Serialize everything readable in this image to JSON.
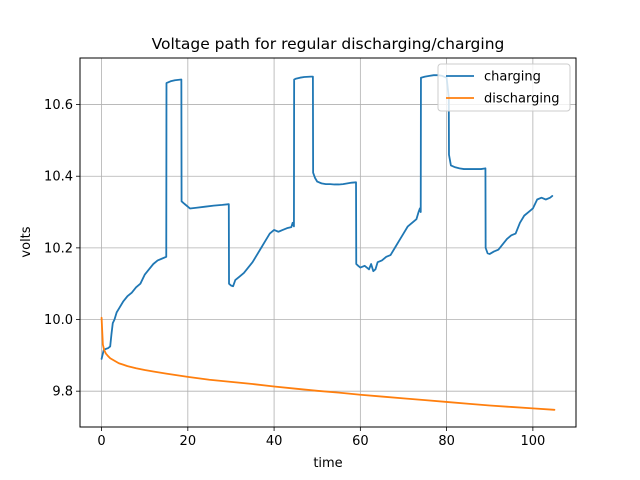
{
  "chart_data": {
    "type": "line",
    "title": "Voltage path for regular discharging/charging",
    "xlabel": "time",
    "ylabel": "volts",
    "xlim": [
      -5,
      110
    ],
    "ylim": [
      9.7,
      10.73
    ],
    "x_ticks": [
      0,
      20,
      40,
      60,
      80,
      100
    ],
    "y_ticks": [
      9.8,
      10.0,
      10.2,
      10.4,
      10.6
    ],
    "y_tick_labels": [
      "9.8",
      "10.0",
      "10.2",
      "10.4",
      "10.6"
    ],
    "grid": true,
    "legend_position": "upper right",
    "series": [
      {
        "name": "charging",
        "color": "#1f77b4",
        "x": [
          0.0,
          0.5,
          1.0,
          1.5,
          2.0,
          2.3,
          2.6,
          3.0,
          3.5,
          4.0,
          5.0,
          6.0,
          7.0,
          8.0,
          9.0,
          10.0,
          11.0,
          12.0,
          13.0,
          14.0,
          15.0,
          15.05,
          16.0,
          17.0,
          18.5,
          18.55,
          19.0,
          19.5,
          20.0,
          20.5,
          22.0,
          24.0,
          26.0,
          28.0,
          29.5,
          29.55,
          30.0,
          30.5,
          31.0,
          32.0,
          33.0,
          34.0,
          35.0,
          36.0,
          37.0,
          38.0,
          39.0,
          40.0,
          41.0,
          42.0,
          43.0,
          44.0,
          44.3,
          44.6,
          44.65,
          45.0,
          46.0,
          47.0,
          48.5,
          49.0,
          49.05,
          49.5,
          50.0,
          51.0,
          52.0,
          53.0,
          54.0,
          55.0,
          56.0,
          57.0,
          58.0,
          59.0,
          59.05,
          59.5,
          60.0,
          61.0,
          62.0,
          62.5,
          63.0,
          63.5,
          64.0,
          65.0,
          66.0,
          67.0,
          68.0,
          69.0,
          70.0,
          71.0,
          72.0,
          73.0,
          73.5,
          73.8,
          74.0,
          74.05,
          75.0,
          76.0,
          77.0,
          78.0,
          79.0,
          80.0,
          80.5,
          80.55,
          81.0,
          82.0,
          83.0,
          84.0,
          85.0,
          86.0,
          87.0,
          88.0,
          89.0,
          89.05,
          89.5,
          90.0,
          91.0,
          92.0,
          93.0,
          94.0,
          95.0,
          96.0,
          97.0,
          98.0,
          99.0,
          100.0,
          101.0,
          102.0,
          103.0,
          104.0,
          104.5
        ],
        "y": [
          9.89,
          9.915,
          9.918,
          9.92,
          9.925,
          9.96,
          9.99,
          10.0,
          10.02,
          10.03,
          10.05,
          10.065,
          10.075,
          10.09,
          10.1,
          10.125,
          10.14,
          10.155,
          10.165,
          10.17,
          10.175,
          10.66,
          10.665,
          10.668,
          10.67,
          10.33,
          10.325,
          10.32,
          10.315,
          10.31,
          10.312,
          10.315,
          10.318,
          10.32,
          10.322,
          10.1,
          10.095,
          10.093,
          10.11,
          10.12,
          10.13,
          10.145,
          10.16,
          10.18,
          10.2,
          10.22,
          10.24,
          10.25,
          10.245,
          10.25,
          10.255,
          10.258,
          10.27,
          10.26,
          10.67,
          10.672,
          10.675,
          10.677,
          10.678,
          10.678,
          10.41,
          10.395,
          10.385,
          10.38,
          10.378,
          10.378,
          10.377,
          10.377,
          10.378,
          10.38,
          10.382,
          10.383,
          10.155,
          10.15,
          10.145,
          10.15,
          10.14,
          10.155,
          10.135,
          10.14,
          10.16,
          10.165,
          10.175,
          10.18,
          10.2,
          10.22,
          10.24,
          10.26,
          10.27,
          10.28,
          10.3,
          10.31,
          10.3,
          10.675,
          10.678,
          10.68,
          10.682,
          10.682,
          10.68,
          10.675,
          10.62,
          10.46,
          10.43,
          10.425,
          10.422,
          10.42,
          10.42,
          10.42,
          10.42,
          10.42,
          10.422,
          10.2,
          10.185,
          10.183,
          10.19,
          10.195,
          10.21,
          10.225,
          10.235,
          10.24,
          10.27,
          10.29,
          10.3,
          10.31,
          10.335,
          10.34,
          10.335,
          10.34,
          10.345
        ]
      },
      {
        "name": "discharging",
        "color": "#ff7f0e",
        "x": [
          0.0,
          0.3,
          0.6,
          1.0,
          1.5,
          2.0,
          3.0,
          4.0,
          5.0,
          6.0,
          8.0,
          10.0,
          12.0,
          15.0,
          20.0,
          25.0,
          30.0,
          35.0,
          40.0,
          45.0,
          50.0,
          55.0,
          60.0,
          65.0,
          70.0,
          75.0,
          80.0,
          85.0,
          90.0,
          95.0,
          100.0,
          105.0
        ],
        "y": [
          10.005,
          9.93,
          9.915,
          9.905,
          9.898,
          9.892,
          9.885,
          9.878,
          9.874,
          9.87,
          9.864,
          9.859,
          9.855,
          9.849,
          9.84,
          9.832,
          9.826,
          9.82,
          9.813,
          9.807,
          9.801,
          9.796,
          9.79,
          9.785,
          9.78,
          9.775,
          9.77,
          9.765,
          9.76,
          9.756,
          9.752,
          9.748
        ]
      }
    ]
  }
}
